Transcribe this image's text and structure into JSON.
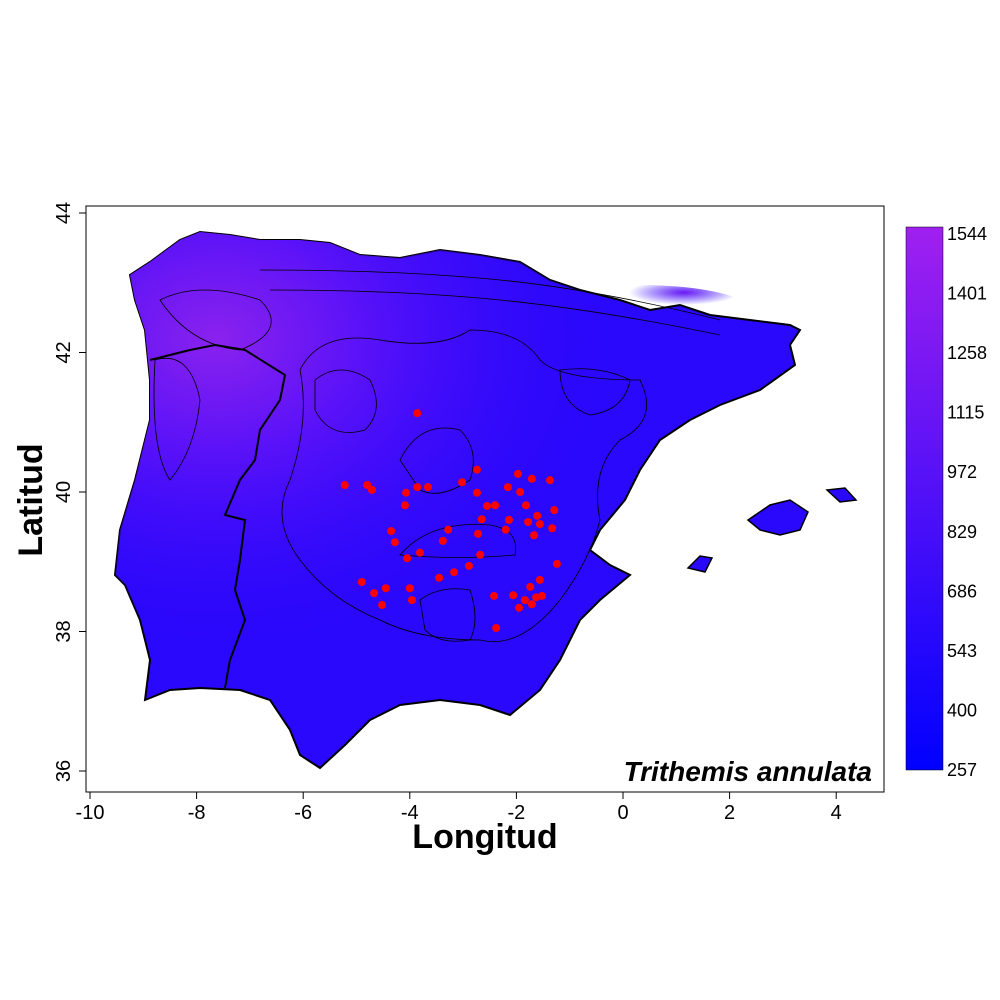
{
  "chart_data": {
    "type": "scatter",
    "subtype": "contour-map with occurrence points",
    "title": "",
    "species_label": "Trithemis annulata",
    "xlabel": "Longitud",
    "ylabel": "Latitud",
    "xlim": [
      -10,
      4.9
    ],
    "ylim": [
      35.7,
      44.1
    ],
    "xticks": [
      "-10",
      "-8",
      "-6",
      "-4",
      "-2",
      "0",
      "2",
      "4"
    ],
    "yticks": [
      "36",
      "38",
      "40",
      "42",
      "44"
    ],
    "grid": false,
    "legend": {
      "placement": "right",
      "type": "colorbar",
      "min": 257,
      "max": 1544,
      "labels": [
        "1544",
        "1401",
        "1258",
        "1115",
        "972",
        "829",
        "686",
        "543",
        "400",
        "257"
      ],
      "color_low": "#0000ff",
      "color_high": "#a020f0"
    },
    "point_color": "#ff0000",
    "points": [
      [
        -5.22,
        40.1
      ],
      [
        -4.8,
        40.1
      ],
      [
        -4.71,
        40.03
      ],
      [
        -4.07,
        39.99
      ],
      [
        -3.86,
        40.07
      ],
      [
        -3.66,
        40.07
      ],
      [
        -4.09,
        39.81
      ],
      [
        -3.86,
        41.13
      ],
      [
        -4.35,
        39.44
      ],
      [
        -4.28,
        39.28
      ],
      [
        -4.05,
        39.05
      ],
      [
        -3.81,
        39.13
      ],
      [
        -3.28,
        39.46
      ],
      [
        -3.38,
        39.3
      ],
      [
        -3.02,
        40.14
      ],
      [
        -2.74,
        40.32
      ],
      [
        -2.74,
        39.99
      ],
      [
        -2.55,
        39.8
      ],
      [
        -2.72,
        39.4
      ],
      [
        -2.4,
        39.81
      ],
      [
        -1.97,
        40.26
      ],
      [
        -1.71,
        40.19
      ],
      [
        -1.37,
        40.17
      ],
      [
        -1.29,
        39.74
      ],
      [
        -1.33,
        39.48
      ],
      [
        -1.67,
        39.38
      ],
      [
        -1.24,
        38.97
      ],
      [
        -1.56,
        38.74
      ],
      [
        -1.74,
        38.64
      ],
      [
        -1.95,
        38.34
      ],
      [
        -2.06,
        38.52
      ],
      [
        -2.42,
        38.51
      ],
      [
        -2.38,
        38.05
      ],
      [
        -2.68,
        39.1
      ],
      [
        -2.89,
        38.94
      ],
      [
        -3.17,
        38.85
      ],
      [
        -3.45,
        38.77
      ],
      [
        -4.0,
        38.62
      ],
      [
        -3.96,
        38.45
      ],
      [
        -4.45,
        38.62
      ],
      [
        -4.67,
        38.55
      ],
      [
        -4.9,
        38.71
      ],
      [
        -4.52,
        38.38
      ],
      [
        -2.16,
        40.07
      ],
      [
        -1.93,
        40.0
      ],
      [
        -1.82,
        39.81
      ],
      [
        -1.61,
        39.66
      ],
      [
        -1.56,
        39.54
      ],
      [
        -2.14,
        39.6
      ],
      [
        -2.2,
        39.46
      ],
      [
        -2.65,
        39.61
      ],
      [
        -1.84,
        38.45
      ],
      [
        -1.63,
        38.49
      ],
      [
        -1.52,
        38.51
      ],
      [
        -1.71,
        38.39
      ],
      [
        -1.78,
        39.57
      ]
    ]
  }
}
